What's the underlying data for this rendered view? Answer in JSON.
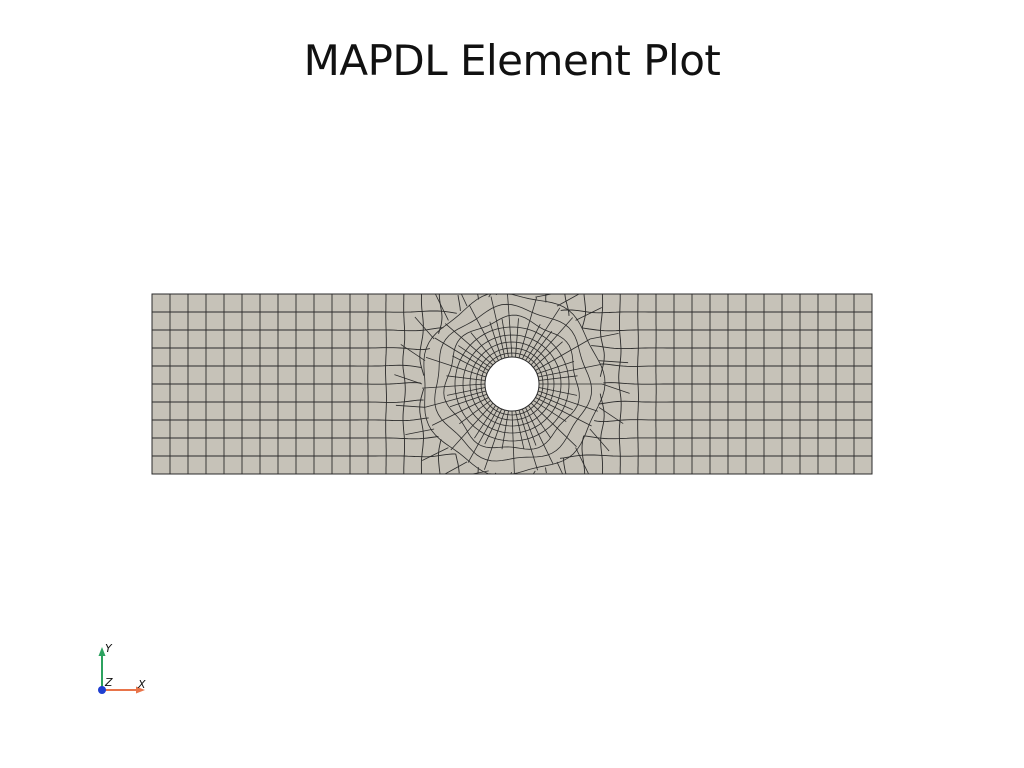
{
  "title": "MAPDL Element Plot",
  "mesh": {
    "fill_color": "#c6c2b8",
    "edge_color": "#2b2b2b",
    "hole_color": "#ffffff"
  },
  "axes": {
    "y_label": "Y",
    "z_label": "Z",
    "x_label": "X",
    "y_color": "#2ca25f",
    "x_color": "#e8744a",
    "z_color": "#1f3fd1"
  }
}
